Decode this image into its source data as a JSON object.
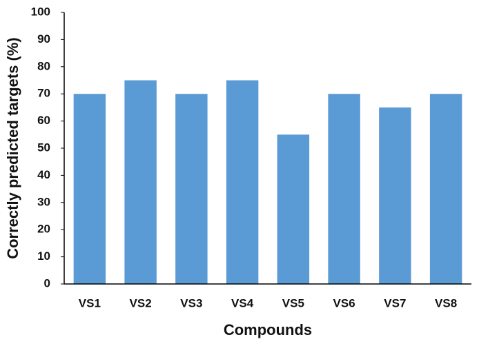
{
  "chart_data": {
    "type": "bar",
    "x_label": "Compounds",
    "y_label": "Correctly predicted targets (%)",
    "categories": [
      "VS1",
      "VS2",
      "VS3",
      "VS4",
      "VS5",
      "VS6",
      "VS7",
      "VS8"
    ],
    "values": [
      70,
      75,
      70,
      75,
      55,
      70,
      65,
      70
    ],
    "color": "#5b9bd5",
    "ylim": [
      0,
      100
    ],
    "yticks": [
      0,
      10,
      20,
      30,
      40,
      50,
      60,
      70,
      80,
      90,
      100
    ],
    "grid": false
  }
}
